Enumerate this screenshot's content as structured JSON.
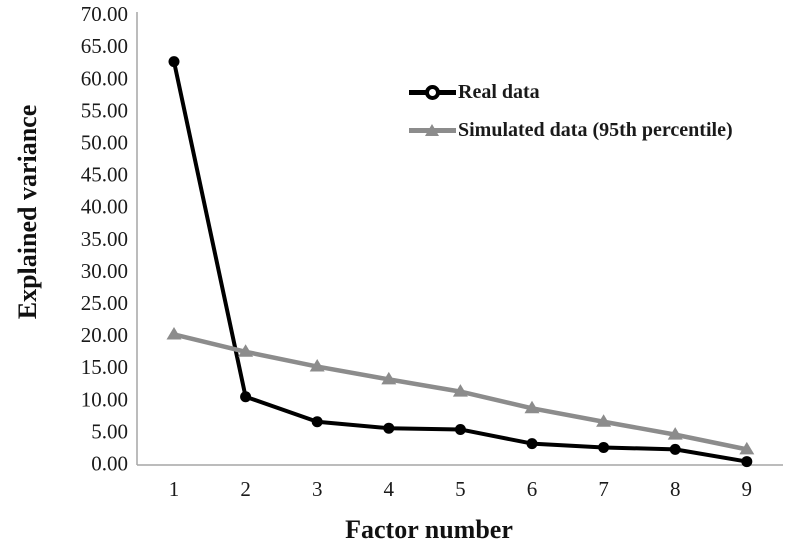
{
  "chart_data": {
    "type": "line",
    "title": "",
    "xlabel": "Factor number",
    "ylabel": "Explained variance",
    "x": [
      1,
      2,
      3,
      4,
      5,
      6,
      7,
      8,
      9
    ],
    "xtick_labels": [
      "1",
      "2",
      "3",
      "4",
      "5",
      "6",
      "7",
      "8",
      "9"
    ],
    "ytick_labels": [
      "0.00",
      "5.00",
      "10.00",
      "15.00",
      "20.00",
      "25.00",
      "30.00",
      "35.00",
      "40.00",
      "45.00",
      "50.00",
      "55.00",
      "60.00",
      "65.00",
      "70.00"
    ],
    "ytick_step": 5,
    "ylim": [
      0,
      70
    ],
    "grid": false,
    "legend_position": "upper-right-inside",
    "series": [
      {
        "name": "Real data",
        "marker": "circle",
        "color": "#000000",
        "values": [
          62.6,
          10.4,
          6.5,
          5.5,
          5.3,
          3.1,
          2.5,
          2.2,
          0.3
        ]
      },
      {
        "name": "Simulated data (95th percentile)",
        "marker": "triangle",
        "color": "#8c8c8c",
        "values": [
          20.1,
          17.4,
          15.1,
          13.1,
          11.2,
          8.6,
          6.5,
          4.5,
          2.2
        ]
      }
    ],
    "axis_color": "#a6a6a6",
    "text_color": "#1a1a1a"
  }
}
